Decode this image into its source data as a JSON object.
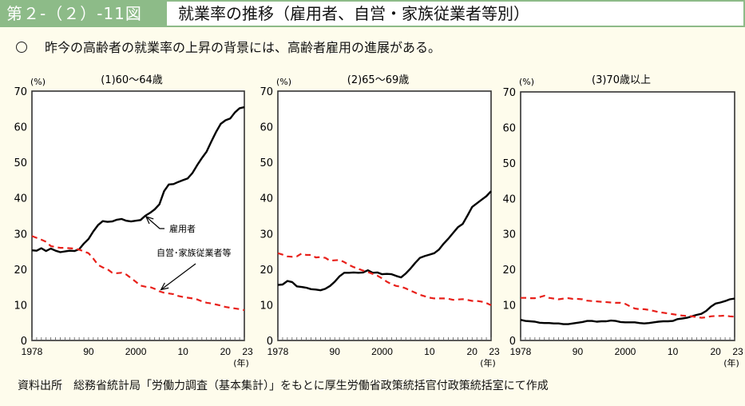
{
  "header": {
    "figure_label": "第２-（２）-11図",
    "title": "就業率の推移（雇用者、自営・家族従業者等別）"
  },
  "lead": {
    "text": "昨今の高齢者の就業率の上昇の背景には、高齢者雇用の進展がある。"
  },
  "source": {
    "text": "資料出所　総務省統計局「労働力調査（基本集計）」をもとに厚生労働省政策統括官付政策統括室にて作成"
  },
  "colors": {
    "header_green": "#8dbb88",
    "background": "#fefcec",
    "employee_line": "#000000",
    "self_employed_line": "#e8201a"
  },
  "chart_data": [
    {
      "type": "line",
      "title": "(1)60～64歳",
      "ylabel": "(%)",
      "xlabel": "(年)",
      "ylim": [
        0,
        70
      ],
      "xlim": [
        1978,
        2023
      ],
      "yticks": [
        "0",
        "10",
        "20",
        "30",
        "40",
        "50",
        "60",
        "70"
      ],
      "xticks": [
        {
          "year": 1978,
          "label": "1978"
        },
        {
          "year": 1990,
          "label": "90"
        },
        {
          "year": 2000,
          "label": "2000"
        },
        {
          "year": 2010,
          "label": "10"
        },
        {
          "year": 2020,
          "label": "20"
        },
        {
          "year": 2023,
          "label": "23"
        }
      ],
      "annotations": [
        {
          "text": "雇用者",
          "target_series": "雇用者",
          "target_year": 2002
        },
        {
          "text": "自営･家族従業者等",
          "target_series": "自営・家族従業者等",
          "target_year": 2005
        }
      ],
      "series": [
        {
          "name": "雇用者",
          "style": "solid",
          "x": [
            1978,
            1979,
            1980,
            1981,
            1982,
            1983,
            1984,
            1985,
            1986,
            1987,
            1988,
            1989,
            1990,
            1991,
            1992,
            1993,
            1994,
            1995,
            1996,
            1997,
            1998,
            1999,
            2000,
            2001,
            2002,
            2003,
            2004,
            2005,
            2006,
            2007,
            2008,
            2009,
            2010,
            2011,
            2012,
            2013,
            2014,
            2015,
            2016,
            2017,
            2018,
            2019,
            2020,
            2021,
            2022,
            2023
          ],
          "values": [
            25.3,
            25.2,
            25.9,
            25.1,
            25.8,
            25.2,
            24.8,
            25.0,
            25.2,
            25.1,
            25.6,
            27.2,
            28.5,
            30.6,
            32.4,
            33.5,
            33.3,
            33.4,
            33.9,
            34.1,
            33.6,
            33.4,
            33.6,
            33.8,
            35.0,
            35.8,
            36.8,
            38.2,
            41.9,
            43.8,
            43.9,
            44.5,
            45.0,
            45.5,
            47.0,
            49.2,
            51.2,
            53.0,
            55.8,
            58.5,
            60.8,
            61.8,
            62.3,
            64.0,
            65.2,
            65.5
          ]
        },
        {
          "name": "自営・家族従業者等",
          "style": "dashed",
          "x": [
            1978,
            1979,
            1980,
            1981,
            1982,
            1983,
            1984,
            1985,
            1986,
            1987,
            1988,
            1989,
            1990,
            1991,
            1992,
            1993,
            1994,
            1995,
            1996,
            1997,
            1998,
            1999,
            2000,
            2001,
            2002,
            2003,
            2004,
            2005,
            2006,
            2007,
            2008,
            2009,
            2010,
            2011,
            2012,
            2013,
            2014,
            2015,
            2016,
            2017,
            2018,
            2019,
            2020,
            2021,
            2022,
            2023
          ],
          "values": [
            29.3,
            28.8,
            28.3,
            27.7,
            26.5,
            26.2,
            26.0,
            26.0,
            25.9,
            25.8,
            25.5,
            25.0,
            24.5,
            23.0,
            21.2,
            20.5,
            20.0,
            19.0,
            18.9,
            19.0,
            18.5,
            17.5,
            16.5,
            15.4,
            15.1,
            15.0,
            14.5,
            13.8,
            13.4,
            13.2,
            13.0,
            12.5,
            12.2,
            12.0,
            11.8,
            11.5,
            11.0,
            10.6,
            10.4,
            10.1,
            9.8,
            9.4,
            9.2,
            9.0,
            8.8,
            8.5
          ]
        }
      ]
    },
    {
      "type": "line",
      "title": "(2)65～69歳",
      "ylabel": "(%)",
      "xlabel": "(年)",
      "ylim": [
        0,
        70
      ],
      "xlim": [
        1978,
        2023
      ],
      "yticks": [
        "0",
        "10",
        "20",
        "30",
        "40",
        "50",
        "60",
        "70"
      ],
      "xticks": [
        {
          "year": 1978,
          "label": "1978"
        },
        {
          "year": 1990,
          "label": "90"
        },
        {
          "year": 2000,
          "label": "2000"
        },
        {
          "year": 2010,
          "label": "10"
        },
        {
          "year": 2020,
          "label": "20"
        },
        {
          "year": 2023,
          "label": "23"
        }
      ],
      "series": [
        {
          "name": "雇用者",
          "style": "solid",
          "x": [
            1978,
            1979,
            1980,
            1981,
            1982,
            1983,
            1984,
            1985,
            1986,
            1987,
            1988,
            1989,
            1990,
            1991,
            1992,
            1993,
            1994,
            1995,
            1996,
            1997,
            1998,
            1999,
            2000,
            2001,
            2002,
            2003,
            2004,
            2005,
            2006,
            2007,
            2008,
            2009,
            2010,
            2011,
            2012,
            2013,
            2014,
            2015,
            2016,
            2017,
            2018,
            2019,
            2020,
            2021,
            2022,
            2023
          ],
          "values": [
            15.6,
            15.7,
            16.7,
            16.4,
            15.2,
            15.0,
            14.8,
            14.4,
            14.3,
            14.1,
            14.5,
            15.3,
            16.5,
            18.0,
            19.0,
            19.0,
            19.1,
            19.0,
            19.1,
            19.7,
            19.0,
            19.1,
            18.6,
            18.7,
            18.6,
            18.1,
            17.7,
            18.8,
            20.2,
            21.8,
            23.2,
            23.7,
            24.1,
            24.5,
            25.5,
            27.2,
            28.6,
            30.2,
            31.8,
            32.7,
            35.0,
            37.5,
            38.5,
            39.5,
            40.5,
            41.9
          ]
        },
        {
          "name": "自営・家族従業者等",
          "style": "dashed",
          "x": [
            1978,
            1979,
            1980,
            1981,
            1982,
            1983,
            1984,
            1985,
            1986,
            1987,
            1988,
            1989,
            1990,
            1991,
            1992,
            1993,
            1994,
            1995,
            1996,
            1997,
            1998,
            1999,
            2000,
            2001,
            2002,
            2003,
            2004,
            2005,
            2006,
            2007,
            2008,
            2009,
            2010,
            2011,
            2012,
            2013,
            2014,
            2015,
            2016,
            2017,
            2018,
            2019,
            2020,
            2021,
            2022,
            2023
          ],
          "values": [
            24.5,
            24.1,
            23.6,
            23.5,
            23.6,
            24.4,
            24.0,
            24.0,
            23.3,
            23.4,
            23.2,
            22.4,
            22.5,
            22.6,
            22.0,
            21.2,
            20.6,
            20.1,
            19.6,
            19.2,
            18.7,
            18.2,
            17.4,
            16.5,
            15.8,
            15.3,
            15.1,
            14.6,
            14.0,
            13.4,
            12.8,
            12.4,
            12.0,
            11.8,
            11.8,
            11.8,
            11.7,
            11.4,
            11.5,
            11.6,
            11.4,
            11.1,
            11.1,
            10.9,
            10.5,
            9.9
          ]
        }
      ]
    },
    {
      "type": "line",
      "title": "(3)70歳以上",
      "ylabel": "(%)",
      "xlabel": "(年)",
      "ylim": [
        0,
        70
      ],
      "xlim": [
        1978,
        2023
      ],
      "yticks": [
        "0",
        "10",
        "20",
        "30",
        "40",
        "50",
        "60",
        "70"
      ],
      "xticks": [
        {
          "year": 1978,
          "label": "1978"
        },
        {
          "year": 1990,
          "label": "90"
        },
        {
          "year": 2000,
          "label": "2000"
        },
        {
          "year": 2010,
          "label": "10"
        },
        {
          "year": 2020,
          "label": "20"
        },
        {
          "year": 2023,
          "label": "23"
        }
      ],
      "series": [
        {
          "name": "雇用者",
          "style": "solid",
          "x": [
            1978,
            1979,
            1980,
            1981,
            1982,
            1983,
            1984,
            1985,
            1986,
            1987,
            1988,
            1989,
            1990,
            1991,
            1992,
            1993,
            1994,
            1995,
            1996,
            1997,
            1998,
            1999,
            2000,
            2001,
            2002,
            2003,
            2004,
            2005,
            2006,
            2007,
            2008,
            2009,
            2010,
            2011,
            2012,
            2013,
            2014,
            2015,
            2016,
            2017,
            2018,
            2019,
            2020,
            2021,
            2022,
            2023
          ],
          "values": [
            5.8,
            5.5,
            5.4,
            5.3,
            5.0,
            4.9,
            4.9,
            4.8,
            4.8,
            4.6,
            4.6,
            4.8,
            5.0,
            5.2,
            5.5,
            5.5,
            5.3,
            5.4,
            5.4,
            5.6,
            5.5,
            5.2,
            5.1,
            5.1,
            5.1,
            4.9,
            4.8,
            4.9,
            5.1,
            5.3,
            5.4,
            5.4,
            5.5,
            6.0,
            6.2,
            6.4,
            6.8,
            7.2,
            7.5,
            8.3,
            9.5,
            10.4,
            10.7,
            11.1,
            11.6,
            11.8
          ]
        },
        {
          "name": "自営・家族従業者等",
          "style": "dashed",
          "x": [
            1978,
            1979,
            1980,
            1981,
            1982,
            1983,
            1984,
            1985,
            1986,
            1987,
            1988,
            1989,
            1990,
            1991,
            1992,
            1993,
            1994,
            1995,
            1996,
            1997,
            1998,
            1999,
            2000,
            2001,
            2002,
            2003,
            2004,
            2005,
            2006,
            2007,
            2008,
            2009,
            2010,
            2011,
            2012,
            2013,
            2014,
            2015,
            2016,
            2017,
            2018,
            2019,
            2020,
            2021,
            2022,
            2023
          ],
          "values": [
            12.0,
            12.0,
            11.9,
            11.9,
            12.2,
            12.6,
            12.0,
            11.8,
            11.6,
            11.8,
            11.9,
            11.7,
            11.7,
            11.6,
            11.2,
            11.1,
            11.0,
            10.9,
            10.8,
            10.7,
            10.6,
            10.6,
            10.3,
            9.6,
            9.0,
            8.8,
            8.8,
            8.6,
            8.3,
            8.0,
            7.8,
            7.6,
            7.4,
            7.2,
            7.0,
            6.9,
            6.8,
            6.6,
            6.4,
            6.5,
            6.8,
            6.9,
            6.9,
            7.0,
            6.8,
            6.7
          ]
        }
      ]
    }
  ]
}
